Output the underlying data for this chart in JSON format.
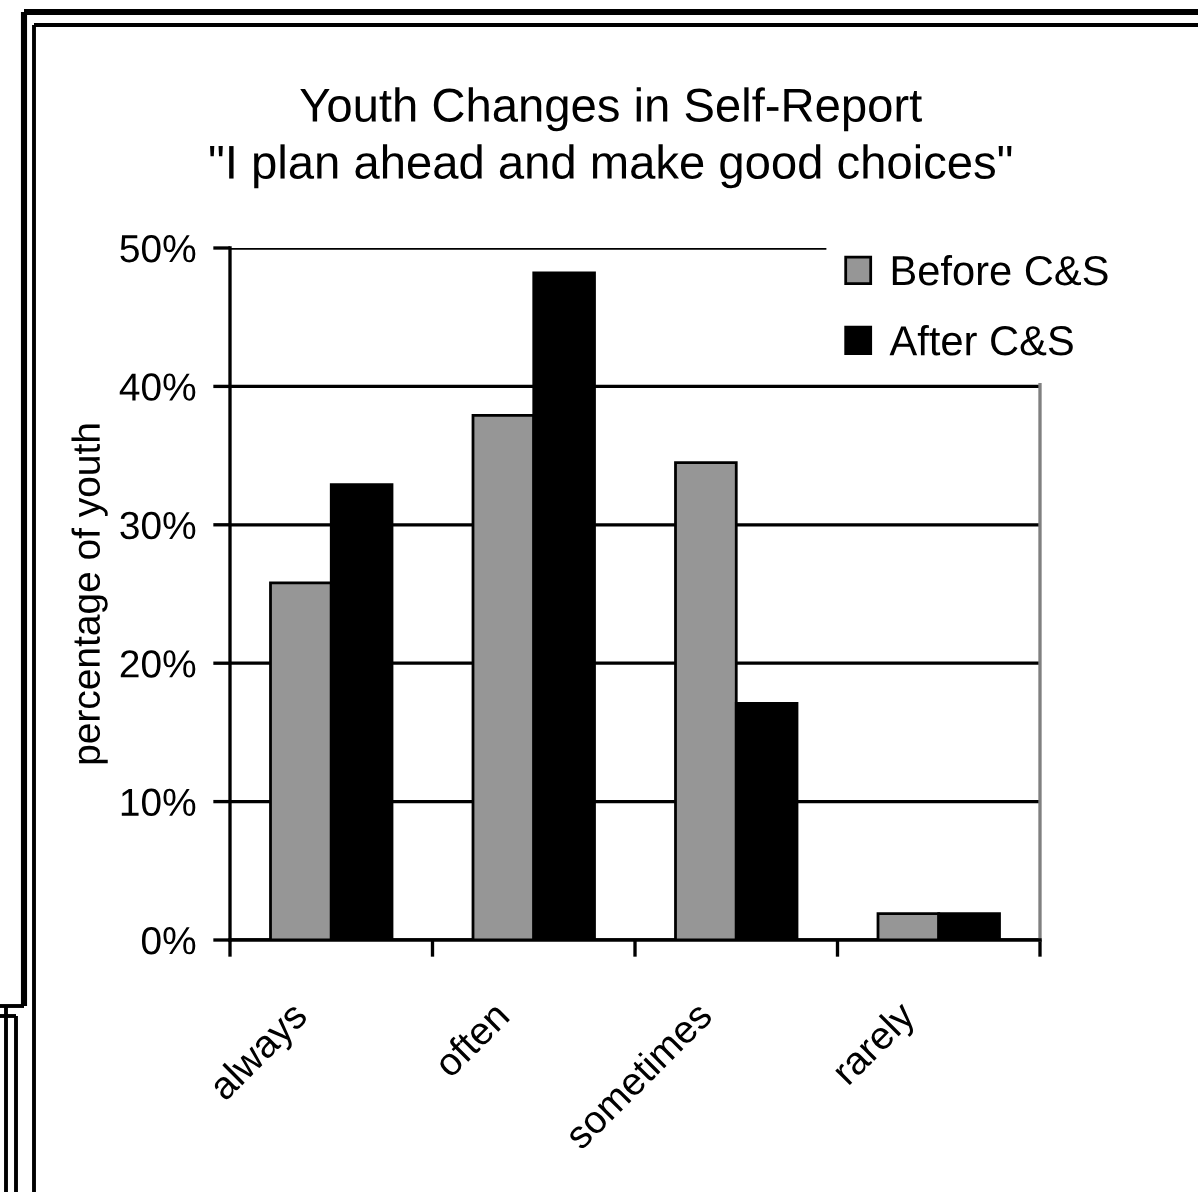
{
  "chart_data": {
    "type": "bar",
    "title": "Youth Changes in Self-Report\n\"I plan ahead and make good choices\"",
    "ylabel": "percentage of youth",
    "categories": [
      "always",
      "often",
      "sometimes",
      "rarely"
    ],
    "series": [
      {
        "name": "Before C&S",
        "color": "#969696",
        "values": [
          25.8,
          37.9,
          34.5,
          1.9
        ]
      },
      {
        "name": "After C&S",
        "color": "#000000",
        "values": [
          32.9,
          48.2,
          17.1,
          1.9
        ]
      }
    ],
    "ylim": [
      0,
      50
    ],
    "yticks": [
      {
        "value": 0,
        "label": "0%"
      },
      {
        "value": 10,
        "label": "10%"
      },
      {
        "value": 20,
        "label": "20%"
      },
      {
        "value": 30,
        "label": "30%"
      },
      {
        "value": 40,
        "label": "40%"
      },
      {
        "value": 50,
        "label": "50%"
      }
    ],
    "grid": "y",
    "legend": "top right"
  }
}
